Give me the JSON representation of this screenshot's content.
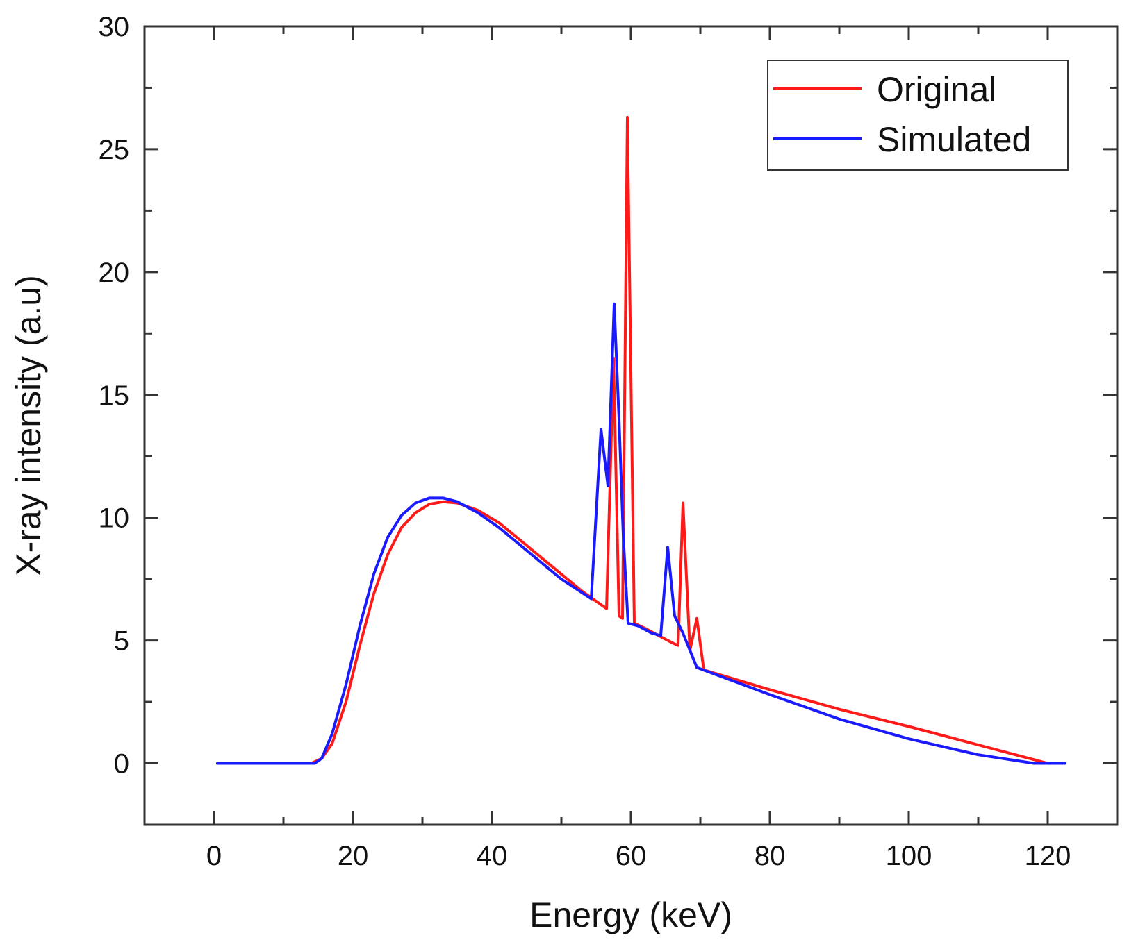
{
  "chart_data": {
    "type": "line",
    "title": "",
    "xlabel": "Energy (keV)",
    "ylabel": "X-ray intensity (a.u)",
    "xlim": [
      -10,
      130
    ],
    "ylim": [
      -2.5,
      30
    ],
    "xticks": [
      0,
      20,
      40,
      60,
      80,
      100,
      120
    ],
    "xtick_labels": [
      "0",
      "20",
      "40",
      "60",
      "80",
      "100",
      "120"
    ],
    "yticks": [
      0,
      5,
      10,
      15,
      20,
      25,
      30
    ],
    "ytick_labels": [
      "0",
      "5",
      "10",
      "15",
      "20",
      "25",
      "30"
    ],
    "grid": false,
    "legend": "top-right",
    "series": [
      {
        "name": "Original",
        "color": "#ff1a1a",
        "points": [
          [
            0.5,
            0
          ],
          [
            14,
            0
          ],
          [
            15.5,
            0.2
          ],
          [
            17,
            0.8
          ],
          [
            19,
            2.5
          ],
          [
            21,
            4.8
          ],
          [
            23,
            6.9
          ],
          [
            25,
            8.5
          ],
          [
            27,
            9.6
          ],
          [
            29,
            10.2
          ],
          [
            31,
            10.55
          ],
          [
            33,
            10.65
          ],
          [
            35,
            10.6
          ],
          [
            38,
            10.3
          ],
          [
            41,
            9.8
          ],
          [
            44,
            9.1
          ],
          [
            47,
            8.4
          ],
          [
            50,
            7.7
          ],
          [
            53,
            7.0
          ],
          [
            55,
            6.6
          ],
          [
            56.5,
            6.3
          ],
          [
            57.5,
            16.5
          ],
          [
            58.3,
            6.0
          ],
          [
            58.8,
            5.9
          ],
          [
            59.5,
            26.3
          ],
          [
            60.5,
            5.7
          ],
          [
            62,
            5.5
          ],
          [
            64,
            5.2
          ],
          [
            66,
            4.9
          ],
          [
            66.8,
            4.8
          ],
          [
            67.5,
            10.6
          ],
          [
            68.5,
            4.6
          ],
          [
            69.5,
            5.9
          ],
          [
            70.5,
            3.8
          ],
          [
            80,
            3.0
          ],
          [
            90,
            2.2
          ],
          [
            100,
            1.5
          ],
          [
            110,
            0.75
          ],
          [
            118,
            0.15
          ],
          [
            120,
            0
          ]
        ]
      },
      {
        "name": "Simulated",
        "color": "#1a1aff",
        "points": [
          [
            0.5,
            0
          ],
          [
            14.5,
            0
          ],
          [
            15.5,
            0.2
          ],
          [
            17,
            1.2
          ],
          [
            19,
            3.2
          ],
          [
            21,
            5.6
          ],
          [
            23,
            7.7
          ],
          [
            25,
            9.2
          ],
          [
            27,
            10.1
          ],
          [
            29,
            10.6
          ],
          [
            31,
            10.8
          ],
          [
            33,
            10.8
          ],
          [
            35,
            10.65
          ],
          [
            38,
            10.2
          ],
          [
            41,
            9.6
          ],
          [
            44,
            8.9
          ],
          [
            47,
            8.2
          ],
          [
            50,
            7.5
          ],
          [
            54.3,
            6.7
          ],
          [
            55.7,
            13.6
          ],
          [
            56.7,
            11.3
          ],
          [
            57.6,
            18.7
          ],
          [
            58.3,
            14.0
          ],
          [
            58.9,
            9.3
          ],
          [
            59.6,
            5.7
          ],
          [
            61,
            5.6
          ],
          [
            63,
            5.3
          ],
          [
            64.3,
            5.2
          ],
          [
            65.3,
            8.8
          ],
          [
            66.3,
            6.0
          ],
          [
            67.5,
            5.3
          ],
          [
            69.5,
            3.9
          ],
          [
            80,
            2.8
          ],
          [
            90,
            1.8
          ],
          [
            100,
            1.0
          ],
          [
            110,
            0.35
          ],
          [
            118,
            0
          ],
          [
            122.5,
            0
          ]
        ]
      }
    ]
  }
}
